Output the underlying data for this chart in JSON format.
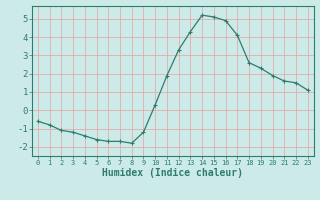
{
  "x": [
    0,
    1,
    2,
    3,
    4,
    5,
    6,
    7,
    8,
    9,
    10,
    11,
    12,
    13,
    14,
    15,
    16,
    17,
    18,
    19,
    20,
    21,
    22,
    23
  ],
  "y": [
    -0.6,
    -0.8,
    -1.1,
    -1.2,
    -1.4,
    -1.6,
    -1.7,
    -1.7,
    -1.8,
    -1.2,
    0.3,
    1.9,
    3.3,
    4.3,
    5.2,
    5.1,
    4.9,
    4.1,
    2.6,
    2.3,
    1.9,
    1.6,
    1.5,
    1.1
  ],
  "line_color": "#2d7d6f",
  "marker": "+",
  "marker_size": 3,
  "bg_color": "#cceae7",
  "grid_color": "#e8a0a0",
  "xlabel": "Humidex (Indice chaleur)",
  "xlim": [
    -0.5,
    23.5
  ],
  "ylim": [
    -2.5,
    5.7
  ],
  "yticks": [
    -2,
    -1,
    0,
    1,
    2,
    3,
    4,
    5
  ],
  "xticks": [
    0,
    1,
    2,
    3,
    4,
    5,
    6,
    7,
    8,
    9,
    10,
    11,
    12,
    13,
    14,
    15,
    16,
    17,
    18,
    19,
    20,
    21,
    22,
    23
  ],
  "spine_color": "#2d7d6f",
  "tick_color": "#2d7d6f",
  "label_color": "#2d7d6f",
  "xlabel_fontsize": 7,
  "tick_fontsize": 6.5
}
